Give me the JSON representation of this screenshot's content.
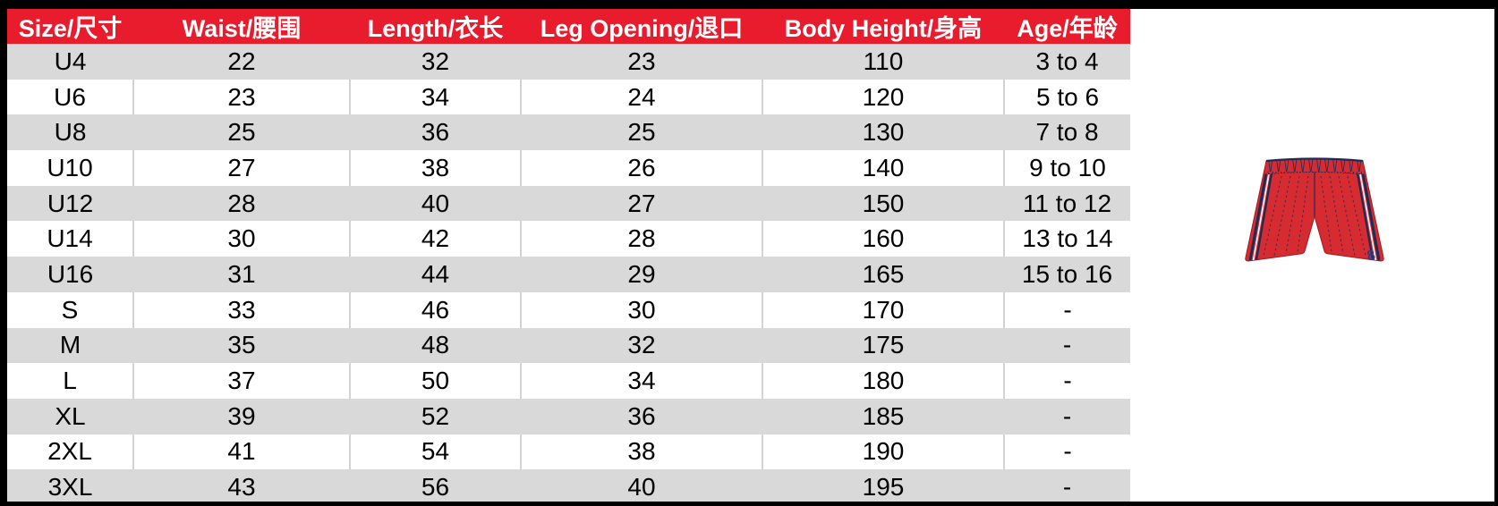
{
  "table": {
    "columns": [
      {
        "key": "size",
        "label": "Size/尺寸"
      },
      {
        "key": "waist",
        "label": "Waist/腰围"
      },
      {
        "key": "length",
        "label": "Length/衣长"
      },
      {
        "key": "leg-opening",
        "label": "Leg Opening/退口"
      },
      {
        "key": "body-height",
        "label": "Body Height/身高"
      },
      {
        "key": "age",
        "label": "Age/年龄"
      }
    ],
    "rows": [
      [
        "U4",
        "22",
        "32",
        "23",
        "110",
        "3 to 4"
      ],
      [
        "U6",
        "23",
        "34",
        "24",
        "120",
        "5 to 6"
      ],
      [
        "U8",
        "25",
        "36",
        "25",
        "130",
        "7 to 8"
      ],
      [
        "U10",
        "27",
        "38",
        "26",
        "140",
        "9 to 10"
      ],
      [
        "U12",
        "28",
        "40",
        "27",
        "150",
        "11 to 12"
      ],
      [
        "U14",
        "30",
        "42",
        "28",
        "160",
        "13 to 14"
      ],
      [
        "U16",
        "31",
        "44",
        "29",
        "165",
        "15 to 16"
      ],
      [
        "S",
        "33",
        "46",
        "30",
        "170",
        "-"
      ],
      [
        "M",
        "35",
        "48",
        "32",
        "175",
        "-"
      ],
      [
        "L",
        "37",
        "50",
        "34",
        "180",
        "-"
      ],
      [
        "XL",
        "39",
        "52",
        "36",
        "185",
        "-"
      ],
      [
        "2XL",
        "41",
        "54",
        "38",
        "190",
        "-"
      ],
      [
        "3XL",
        "43",
        "56",
        "40",
        "195",
        "-"
      ]
    ]
  },
  "illustration": {
    "name": "red-athletic-shorts",
    "jersey_number": "8"
  },
  "colors": {
    "header_bg": "#e81c2d",
    "row_alt_bg": "#d9d9d9",
    "row_bg": "#ffffff",
    "grid_line": "#d6d2cf",
    "frame": "#000000",
    "text": "#000000",
    "header_text": "#ffffff",
    "shorts_red": "#d62b30",
    "shorts_red_outline": "#a01b21",
    "shorts_navy": "#1e2c55",
    "shorts_white_stripe": "#f2f2f2",
    "shorts_number_blue": "#2c3e8c"
  }
}
